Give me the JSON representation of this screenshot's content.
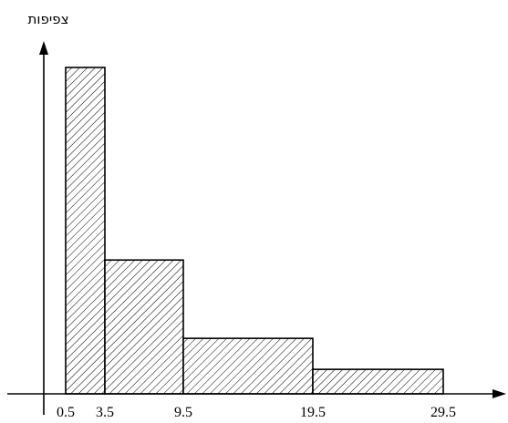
{
  "chart_data": {
    "type": "bar",
    "title": "",
    "xlabel": "",
    "ylabel": "צפיפות",
    "bins": [
      {
        "start": 0.5,
        "end": 3.5,
        "value": 100
      },
      {
        "start": 3.5,
        "end": 9.5,
        "value": 41
      },
      {
        "start": 9.5,
        "end": 19.5,
        "value": 17
      },
      {
        "start": 19.5,
        "end": 29.5,
        "value": 7.5
      }
    ],
    "x_ticks": [
      "0.5",
      "3.5",
      "9.5",
      "19.5",
      "29.5"
    ],
    "ylim": [
      0,
      105
    ],
    "grid": false,
    "legend": "none",
    "colors": {
      "bar_fill": "#ffffff",
      "hatch": "#000000",
      "outline": "#000000",
      "axis": "#000000"
    }
  }
}
